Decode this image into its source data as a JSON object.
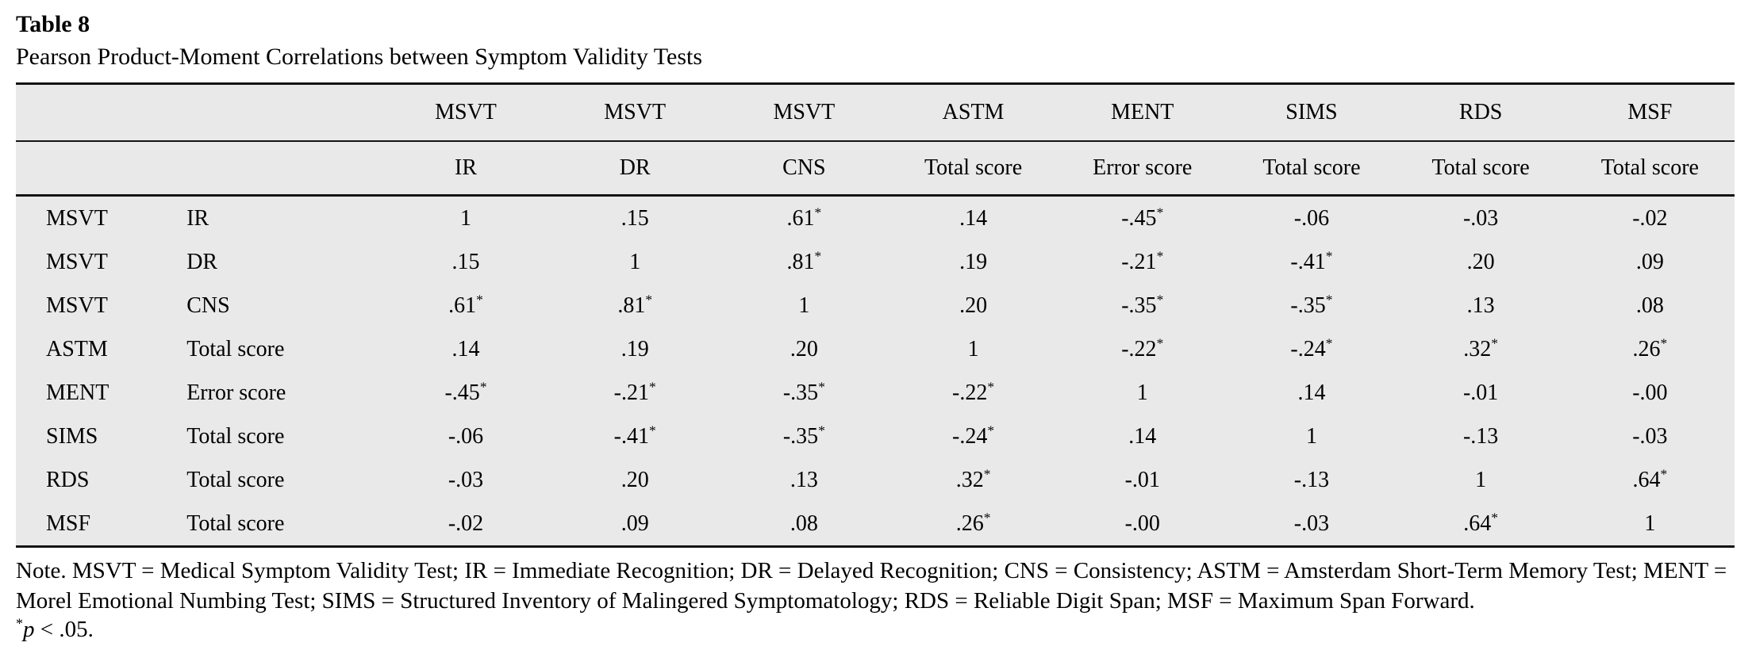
{
  "table": {
    "label": "Table 8",
    "caption": "Pearson Product-Moment Correlations between Symptom Validity Tests",
    "col_groups": [
      "MSVT",
      "MSVT",
      "MSVT",
      "ASTM",
      "MENT",
      "SIMS",
      "RDS",
      "MSF"
    ],
    "col_subheaders": [
      "IR",
      "DR",
      "CNS",
      "Total score",
      "Error score",
      "Total score",
      "Total score",
      "Total score"
    ],
    "rows": [
      {
        "test": "MSVT",
        "score": "IR",
        "values": [
          "1",
          ".15",
          ".61*",
          ".14",
          "-.45*",
          "-.06",
          "-.03",
          "-.02"
        ]
      },
      {
        "test": "MSVT",
        "score": "DR",
        "values": [
          ".15",
          "1",
          ".81*",
          ".19",
          "-.21*",
          "-.41*",
          ".20",
          ".09"
        ]
      },
      {
        "test": "MSVT",
        "score": "CNS",
        "values": [
          ".61*",
          ".81*",
          "1",
          ".20",
          "-.35*",
          "-.35*",
          ".13",
          ".08"
        ]
      },
      {
        "test": "ASTM",
        "score": "Total score",
        "values": [
          ".14",
          ".19",
          ".20",
          "1",
          "-.22*",
          "-.24*",
          ".32*",
          ".26*"
        ]
      },
      {
        "test": "MENT",
        "score": "Error score",
        "values": [
          "-.45*",
          "-.21*",
          "-.35*",
          "-.22*",
          "1",
          ".14",
          "-.01",
          "-.00"
        ]
      },
      {
        "test": "SIMS",
        "score": "Total score",
        "values": [
          "-.06",
          "-.41*",
          "-.35*",
          "-.24*",
          ".14",
          "1",
          "-.13",
          "-.03"
        ]
      },
      {
        "test": "RDS",
        "score": "Total score",
        "values": [
          "-.03",
          ".20",
          ".13",
          ".32*",
          "-.01",
          "-.13",
          "1",
          ".64*"
        ]
      },
      {
        "test": "MSF",
        "score": "Total score",
        "values": [
          "-.02",
          ".09",
          ".08",
          ".26*",
          "-.00",
          "-.03",
          ".64*",
          "1"
        ]
      }
    ],
    "note": "Note. MSVT = Medical Symptom Validity Test; IR = Immediate Recognition; DR = Delayed Recognition; CNS = Consistency; ASTM = Amsterdam Short-Term Memory Test; MENT = Morel Emotional Numbing Test; SIMS = Structured Inventory of Malingered Symptomatology; RDS = Reliable Digit Span; MSF = Maximum Span Forward.",
    "sig_marker": "*",
    "sig_var": "p",
    "sig_rest": " < .05.",
    "colors": {
      "table_bg": "#e9e9e9",
      "rule": "#141414",
      "text": "#000000",
      "page_bg": "#ffffff"
    }
  }
}
